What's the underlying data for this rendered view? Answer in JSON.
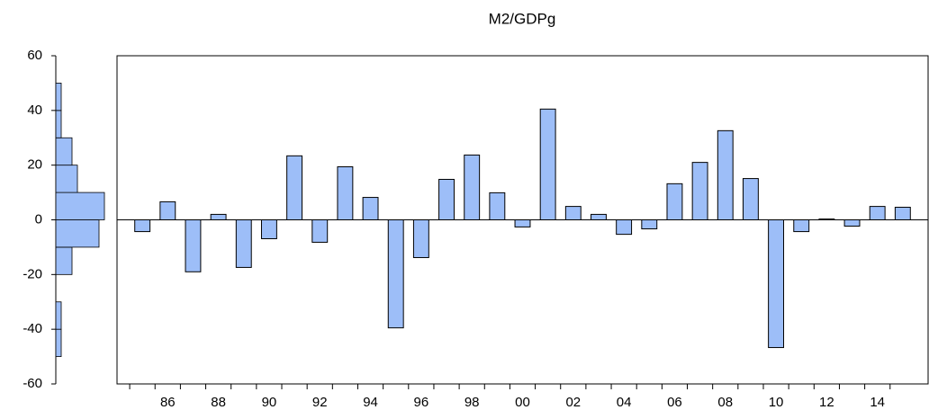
{
  "chart_data": [
    {
      "type": "bar",
      "title": "M2/GDPg",
      "categories": [
        null,
        "86",
        null,
        "88",
        null,
        "90",
        null,
        "92",
        null,
        "94",
        null,
        "96",
        null,
        "98",
        null,
        "00",
        null,
        "02",
        null,
        "04",
        null,
        "06",
        null,
        "08",
        null,
        "10",
        null,
        "12",
        null,
        "14",
        null
      ],
      "values": [
        -4.3,
        6.6,
        -19,
        2,
        -17.4,
        -6.9,
        23.4,
        -8.2,
        19.4,
        8.2,
        -39.5,
        -13.8,
        14.8,
        23.7,
        9.9,
        -2.6,
        40.5,
        4.9,
        2,
        -5.3,
        -3.3,
        13.2,
        21,
        32.6,
        15.1,
        -46.7,
        -4.3,
        0.3,
        -2.3,
        4.9,
        4.6
      ],
      "color": "#9dbef8",
      "ylim": [
        -60,
        60
      ],
      "yticks": [
        -60,
        -40,
        -20,
        0,
        20,
        40,
        60
      ]
    },
    {
      "type": "histogram",
      "bins": [
        -50,
        -40,
        -30,
        -20,
        -10,
        0,
        10,
        20,
        30,
        40,
        50
      ],
      "counts": [
        1,
        1,
        0,
        3,
        8,
        9,
        4,
        3,
        1,
        1
      ],
      "color": "#9dbef8"
    }
  ]
}
